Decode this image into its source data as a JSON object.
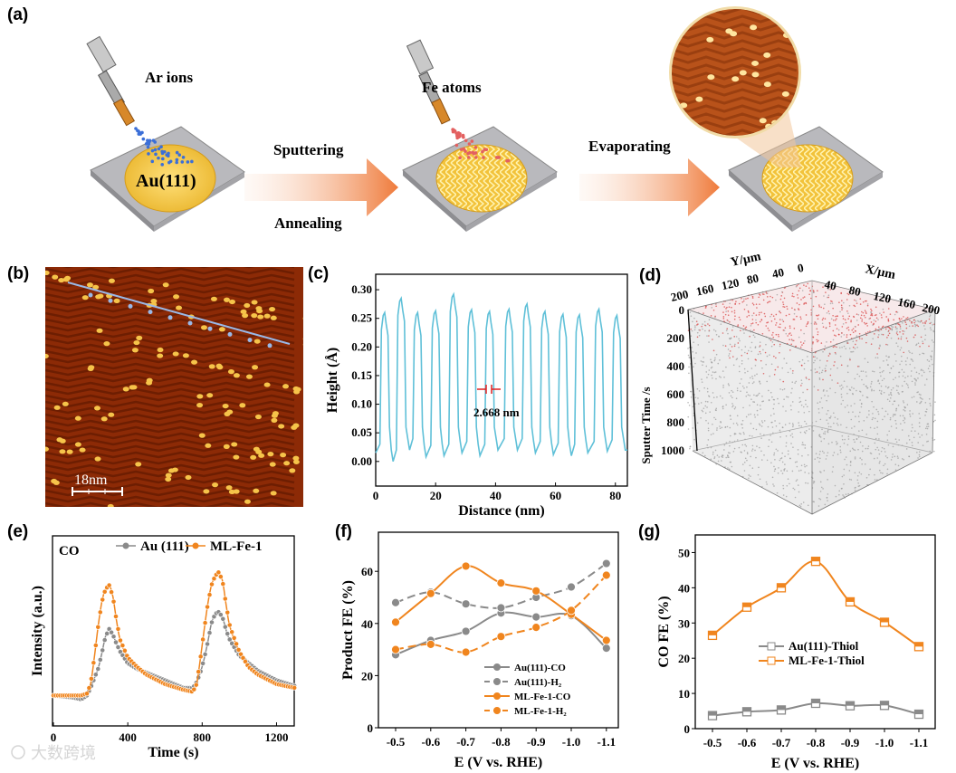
{
  "panel_labels": [
    "(a)",
    "(b)",
    "(c)",
    "(d)",
    "(e)",
    "(f)",
    "(g)"
  ],
  "schematic": {
    "ion_label": "Ar ions",
    "substrate_label": "Au(111)",
    "step1_top": "Sputtering",
    "step1_bottom": "Annealing",
    "atom_label": "Fe atoms",
    "step2_top": "Evaporating"
  },
  "stm": {
    "scale_bar": "18nm"
  },
  "tof_sims": {
    "y_axis_label": "Y/µm",
    "x_axis_label": "X/µm",
    "z_axis_label": "Sputter Time /s",
    "y_ticks": [
      "200",
      "160",
      "120",
      "80",
      "40",
      "0"
    ],
    "x_ticks": [
      "40",
      "80",
      "120",
      "160",
      "200"
    ],
    "z_ticks": [
      "0",
      "200",
      "400",
      "600",
      "800",
      "1000"
    ]
  },
  "watermark": "大数跨境",
  "colors": {
    "orange": "#f0851e",
    "gray": "#8a8a8a",
    "cyan": "#5fc0d8",
    "red": "#e02020"
  },
  "chart_data": [
    {
      "id": "c",
      "type": "line",
      "xlabel": "Distance (nm)",
      "ylabel": "Height (Å)",
      "xlim": [
        0,
        84
      ],
      "ylim": [
        -0.043,
        0.327
      ],
      "xticks": [
        "0",
        "20",
        "40",
        "60",
        "80"
      ],
      "xtick_values": [
        0,
        20,
        40,
        60,
        80
      ],
      "yticks": [
        "0.00",
        "0.05",
        "0.10",
        "0.15",
        "0.20",
        "0.25",
        "0.30"
      ],
      "ytick_values": [
        0,
        0.05,
        0.1,
        0.15,
        0.2,
        0.25,
        0.3
      ],
      "annotation": "2.668 nm",
      "peaks_x": [
        3,
        8.5,
        14,
        20,
        26,
        32,
        38,
        44.5,
        50.5,
        56.5,
        62.5,
        68,
        74.5,
        80.5
      ],
      "peaks_height": [
        0.26,
        0.285,
        0.26,
        0.263,
        0.292,
        0.265,
        0.262,
        0.266,
        0.275,
        0.262,
        0.257,
        0.256,
        0.266,
        0.255
      ],
      "valley_height": [
        0.01,
        0.0,
        0.02,
        0.008,
        0.01,
        0.015,
        0.01,
        0.02,
        0.02,
        0.015,
        0.012,
        0.01,
        0.015,
        0.018,
        0.02
      ]
    },
    {
      "id": "e",
      "type": "line",
      "title": "CO",
      "xlabel": "Time (s)",
      "ylabel": "Intensity (a.u.)",
      "xlim": [
        0,
        1300
      ],
      "ylim": [
        0,
        1
      ],
      "xticks": [
        "0",
        "400",
        "800",
        "1200"
      ],
      "xtick_values": [
        0,
        400,
        800,
        1200
      ],
      "x": [
        0,
        50,
        100,
        150,
        180,
        200,
        220,
        240,
        260,
        280,
        300,
        320,
        340,
        360,
        400,
        450,
        500,
        600,
        700,
        750,
        770,
        790,
        810,
        830,
        850,
        870,
        890,
        910,
        930,
        950,
        1000,
        1050,
        1100,
        1200,
        1300
      ],
      "series": [
        {
          "name": "Au (111)",
          "color": "#8a8a8a",
          "values": [
            0.16,
            0.155,
            0.15,
            0.14,
            0.16,
            0.2,
            0.25,
            0.3,
            0.38,
            0.47,
            0.51,
            0.48,
            0.43,
            0.39,
            0.33,
            0.3,
            0.28,
            0.24,
            0.2,
            0.2,
            0.23,
            0.28,
            0.35,
            0.44,
            0.54,
            0.59,
            0.6,
            0.57,
            0.5,
            0.45,
            0.37,
            0.33,
            0.29,
            0.24,
            0.21
          ]
        },
        {
          "name": "ML-Fe-1",
          "color": "#f0851e",
          "values": [
            0.16,
            0.16,
            0.16,
            0.16,
            0.17,
            0.22,
            0.36,
            0.52,
            0.65,
            0.72,
            0.74,
            0.68,
            0.55,
            0.45,
            0.36,
            0.31,
            0.27,
            0.22,
            0.19,
            0.18,
            0.22,
            0.35,
            0.5,
            0.64,
            0.74,
            0.79,
            0.81,
            0.76,
            0.63,
            0.52,
            0.39,
            0.31,
            0.27,
            0.22,
            0.2
          ]
        }
      ]
    },
    {
      "id": "f",
      "type": "line",
      "xlabel": "E (V vs. RHE)",
      "ylabel": "Product FE (%)",
      "ylim": [
        0,
        75
      ],
      "categories": [
        "-0.5",
        "-0.6",
        "-0.7",
        "-0.8",
        "-0.9",
        "-1.0",
        "-1.1"
      ],
      "yticks": [
        "0",
        "20",
        "40",
        "60"
      ],
      "ytick_values": [
        0,
        20,
        40,
        60
      ],
      "legend": "bottom-right",
      "series": [
        {
          "name": "Au(111)-CO",
          "color": "#8a8a8a",
          "dashed": false,
          "values": [
            28,
            33.5,
            37,
            44,
            42.5,
            43,
            30.5
          ]
        },
        {
          "name": "Au(111)-H₂",
          "color": "#8a8a8a",
          "dashed": true,
          "values": [
            48,
            52,
            47.5,
            46,
            50,
            54,
            63
          ]
        },
        {
          "name": "ML-Fe-1-CO",
          "color": "#f0851e",
          "dashed": false,
          "values": [
            40.5,
            51.5,
            62,
            55.5,
            52.5,
            43.5,
            33.5
          ]
        },
        {
          "name": "ML-Fe-1-H₂",
          "color": "#f0851e",
          "dashed": true,
          "values": [
            30,
            32,
            29,
            35,
            38.5,
            45,
            58.5
          ]
        }
      ]
    },
    {
      "id": "g",
      "type": "line",
      "xlabel": "E (V vs. RHE)",
      "ylabel": "CO FE (%)",
      "ylim": [
        0,
        55
      ],
      "categories": [
        "-0.5",
        "-0.6",
        "-0.7",
        "-0.8",
        "-0.9",
        "-1.0",
        "-1.1"
      ],
      "yticks": [
        "0",
        "10",
        "20",
        "30",
        "40",
        "50"
      ],
      "ytick_values": [
        0,
        10,
        20,
        30,
        40,
        50
      ],
      "legend": "center",
      "series": [
        {
          "name": "Au(111)-Thiol",
          "color": "#8a8a8a",
          "values": [
            3.7,
            4.8,
            5.3,
            7.2,
            6.5,
            6.6,
            4.1
          ]
        },
        {
          "name": "ML-Fe-1-Thiol",
          "color": "#f0851e",
          "values": [
            26.5,
            34.5,
            40,
            47.5,
            36,
            30.2,
            23.3
          ]
        }
      ]
    }
  ]
}
